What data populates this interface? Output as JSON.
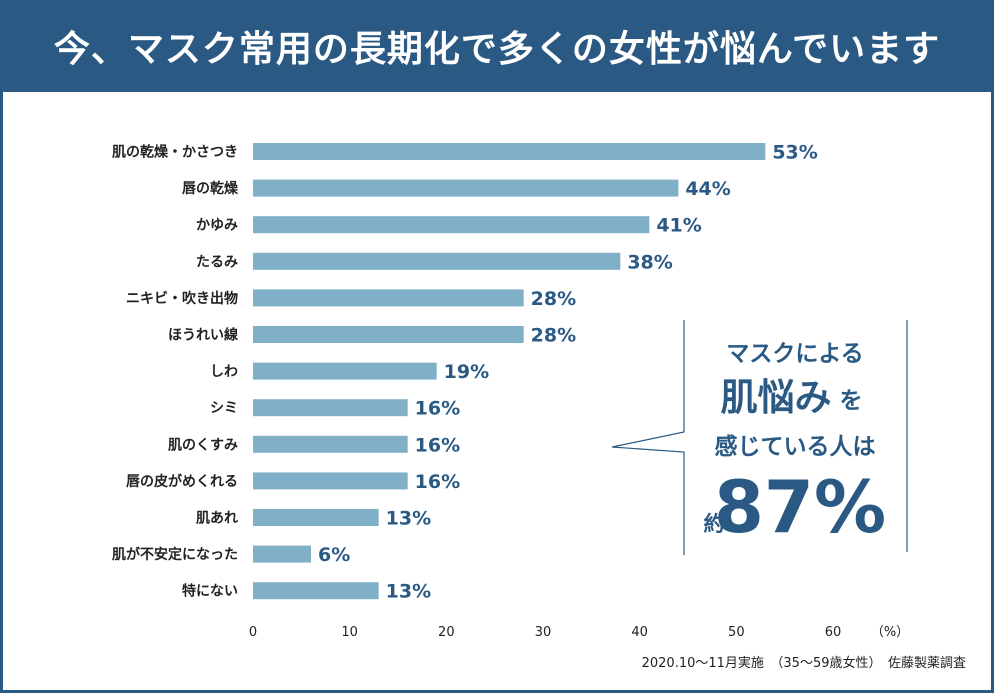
{
  "header": {
    "title": "今、マスク常用の長期化で多くの女性が悩んでいます"
  },
  "chart_data": {
    "type": "bar",
    "orientation": "horizontal",
    "categories": [
      "肌の乾燥・かさつき",
      "唇の乾燥",
      "かゆみ",
      "たるみ",
      "ニキビ・吹き出物",
      "ほうれい線",
      "しわ",
      "シミ",
      "肌のくすみ",
      "唇の皮がめくれる",
      "肌あれ",
      "肌が不安定になった",
      "特にない"
    ],
    "values": [
      53,
      44,
      41,
      38,
      28,
      28,
      19,
      16,
      16,
      16,
      13,
      6,
      13
    ],
    "value_labels": [
      "53%",
      "44%",
      "41%",
      "38%",
      "28%",
      "28%",
      "19%",
      "16%",
      "16%",
      "16%",
      "13%",
      "6%",
      "13%"
    ],
    "xlim": [
      0,
      60
    ],
    "xticks": [
      0,
      10,
      20,
      30,
      40,
      50,
      60
    ],
    "xunit": "（%）",
    "grid": false,
    "bar_color": "#7fb0c7",
    "accent_color": "#2a5a84"
  },
  "callout": {
    "line1": "マスクによる",
    "line2_big": "肌悩み",
    "line2_small": "を",
    "line3": "感じている人は",
    "prefix": "約",
    "percent": "87%"
  },
  "source": "2020.10〜11月実施　（35〜59歳女性）　佐藤製薬調査"
}
